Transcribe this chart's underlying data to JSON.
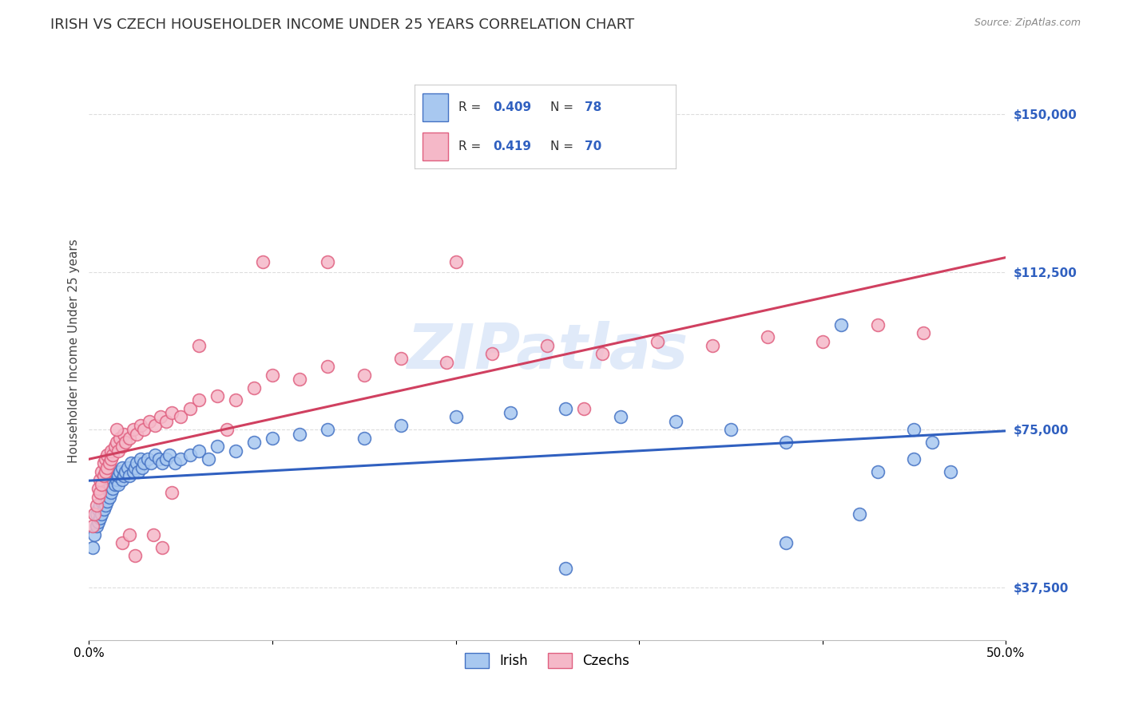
{
  "title": "IRISH VS CZECH HOUSEHOLDER INCOME UNDER 25 YEARS CORRELATION CHART",
  "source": "Source: ZipAtlas.com",
  "ylabel": "Householder Income Under 25 years",
  "xlim": [
    0.0,
    0.5
  ],
  "ylim": [
    25000,
    162500
  ],
  "yticks": [
    37500,
    75000,
    112500,
    150000
  ],
  "ytick_labels": [
    "$37,500",
    "$75,000",
    "$112,500",
    "$150,000"
  ],
  "xticks": [
    0.0,
    0.1,
    0.2,
    0.3,
    0.4,
    0.5
  ],
  "xtick_labels": [
    "0.0%",
    "",
    "",
    "",
    "",
    "50.0%"
  ],
  "background_color": "#ffffff",
  "grid_color": "#dddddd",
  "watermark": "ZIPatlas",
  "legend_irish_R": "0.409",
  "legend_irish_N": "78",
  "legend_czech_R": "0.419",
  "legend_czech_N": "70",
  "irish_color": "#a8c8f0",
  "czech_color": "#f5b8c8",
  "irish_edge_color": "#4472c4",
  "czech_edge_color": "#e06080",
  "irish_line_color": "#3060c0",
  "czech_line_color": "#d04060",
  "title_fontsize": 13,
  "axis_label_fontsize": 11,
  "tick_fontsize": 11,
  "irish_x": [
    0.002,
    0.003,
    0.004,
    0.004,
    0.005,
    0.005,
    0.006,
    0.006,
    0.007,
    0.007,
    0.008,
    0.008,
    0.009,
    0.009,
    0.01,
    0.01,
    0.011,
    0.011,
    0.012,
    0.012,
    0.013,
    0.014,
    0.014,
    0.015,
    0.015,
    0.016,
    0.016,
    0.017,
    0.018,
    0.018,
    0.019,
    0.02,
    0.021,
    0.022,
    0.023,
    0.024,
    0.025,
    0.026,
    0.027,
    0.028,
    0.029,
    0.03,
    0.032,
    0.034,
    0.036,
    0.038,
    0.04,
    0.042,
    0.044,
    0.047,
    0.05,
    0.055,
    0.06,
    0.065,
    0.07,
    0.08,
    0.09,
    0.1,
    0.115,
    0.13,
    0.15,
    0.17,
    0.2,
    0.23,
    0.26,
    0.29,
    0.32,
    0.35,
    0.38,
    0.41,
    0.43,
    0.45,
    0.46,
    0.47,
    0.26,
    0.38,
    0.42,
    0.45
  ],
  "irish_y": [
    47000,
    50000,
    52000,
    55000,
    53000,
    56000,
    54000,
    57000,
    55000,
    58000,
    56000,
    59000,
    57000,
    60000,
    58000,
    61000,
    59000,
    62000,
    60000,
    63000,
    61000,
    62000,
    64000,
    63000,
    65000,
    62000,
    64000,
    65000,
    63000,
    66000,
    64000,
    65000,
    66000,
    64000,
    67000,
    65000,
    66000,
    67000,
    65000,
    68000,
    66000,
    67000,
    68000,
    67000,
    69000,
    68000,
    67000,
    68000,
    69000,
    67000,
    68000,
    69000,
    70000,
    68000,
    71000,
    70000,
    72000,
    73000,
    74000,
    75000,
    73000,
    76000,
    78000,
    79000,
    80000,
    78000,
    77000,
    75000,
    72000,
    100000,
    65000,
    68000,
    72000,
    65000,
    42000,
    48000,
    55000,
    75000
  ],
  "czech_x": [
    0.002,
    0.003,
    0.004,
    0.005,
    0.005,
    0.006,
    0.006,
    0.007,
    0.007,
    0.008,
    0.008,
    0.009,
    0.009,
    0.01,
    0.01,
    0.011,
    0.012,
    0.012,
    0.013,
    0.014,
    0.015,
    0.016,
    0.017,
    0.018,
    0.019,
    0.02,
    0.022,
    0.024,
    0.026,
    0.028,
    0.03,
    0.033,
    0.036,
    0.039,
    0.042,
    0.045,
    0.05,
    0.055,
    0.06,
    0.07,
    0.08,
    0.09,
    0.1,
    0.115,
    0.13,
    0.15,
    0.17,
    0.195,
    0.22,
    0.25,
    0.28,
    0.31,
    0.34,
    0.37,
    0.4,
    0.43,
    0.455,
    0.13,
    0.2,
    0.27,
    0.06,
    0.075,
    0.095,
    0.045,
    0.025,
    0.035,
    0.04,
    0.015,
    0.018,
    0.022
  ],
  "czech_y": [
    52000,
    55000,
    57000,
    59000,
    61000,
    60000,
    63000,
    62000,
    65000,
    64000,
    67000,
    65000,
    68000,
    66000,
    69000,
    67000,
    68000,
    70000,
    69000,
    71000,
    72000,
    70000,
    73000,
    71000,
    74000,
    72000,
    73000,
    75000,
    74000,
    76000,
    75000,
    77000,
    76000,
    78000,
    77000,
    79000,
    78000,
    80000,
    82000,
    83000,
    82000,
    85000,
    88000,
    87000,
    90000,
    88000,
    92000,
    91000,
    93000,
    95000,
    93000,
    96000,
    95000,
    97000,
    96000,
    100000,
    98000,
    115000,
    115000,
    80000,
    95000,
    75000,
    115000,
    60000,
    45000,
    50000,
    47000,
    75000,
    48000,
    50000
  ]
}
